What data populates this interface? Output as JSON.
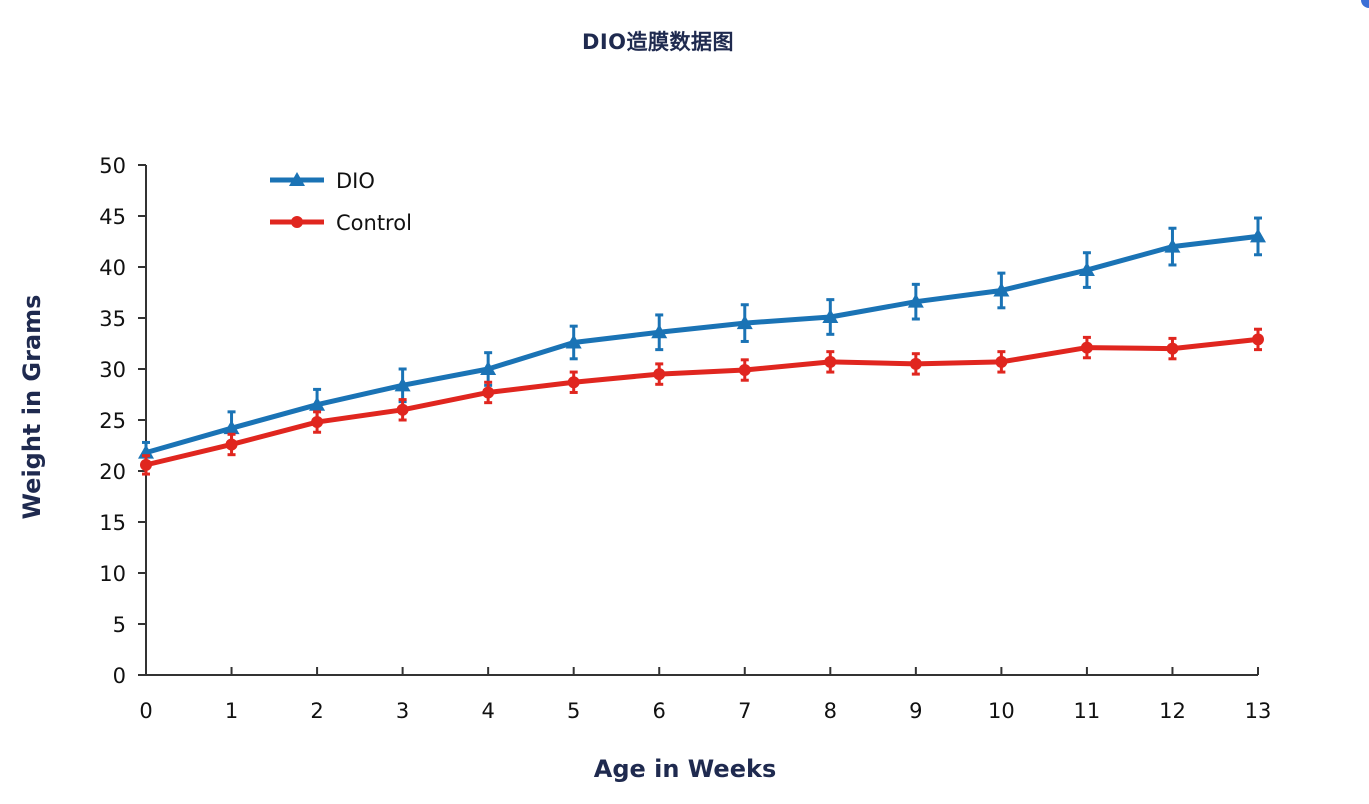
{
  "chart_data": {
    "type": "line",
    "title": "DIO造膜数据图",
    "xlabel": "Age in Weeks",
    "ylabel": "Weight in Grams",
    "x": [
      0,
      1,
      2,
      3,
      4,
      5,
      6,
      7,
      8,
      9,
      10,
      11,
      12,
      13
    ],
    "xlim": [
      0,
      13
    ],
    "ylim": [
      0,
      50
    ],
    "yticks": [
      0,
      5,
      10,
      15,
      20,
      25,
      30,
      35,
      40,
      45,
      50
    ],
    "grid": false,
    "legend_position": "top-left",
    "series": [
      {
        "name": "DIO",
        "color": "#1a73b5",
        "marker": "triangle",
        "values": [
          21.8,
          24.2,
          26.5,
          28.4,
          30.0,
          32.6,
          33.6,
          34.5,
          35.1,
          36.6,
          37.7,
          39.7,
          42.0,
          43.0
        ],
        "errors": [
          1.0,
          1.6,
          1.5,
          1.6,
          1.6,
          1.6,
          1.7,
          1.8,
          1.7,
          1.7,
          1.7,
          1.7,
          1.8,
          1.8
        ]
      },
      {
        "name": "Control",
        "color": "#e0261f",
        "marker": "circle",
        "values": [
          20.6,
          22.6,
          24.8,
          26.0,
          27.7,
          28.7,
          29.5,
          29.9,
          30.7,
          30.5,
          30.7,
          32.1,
          32.0,
          32.9
        ],
        "errors": [
          0.9,
          1.0,
          1.0,
          1.0,
          1.0,
          1.0,
          1.0,
          1.0,
          1.0,
          1.0,
          1.0,
          1.0,
          1.0,
          1.0
        ]
      }
    ]
  }
}
